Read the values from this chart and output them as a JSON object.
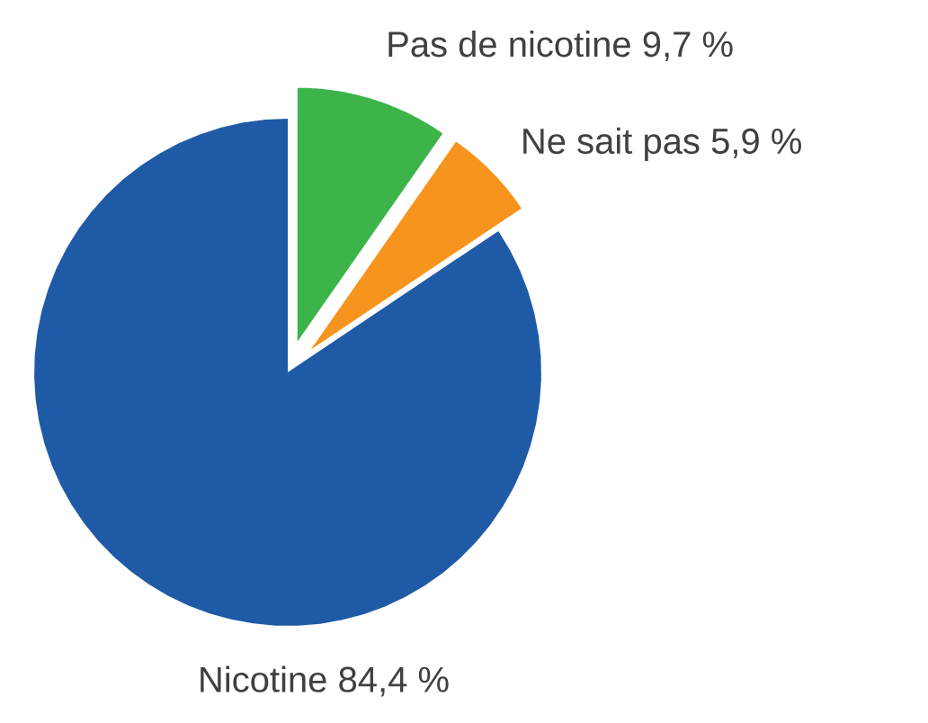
{
  "chart_data": {
    "type": "pie",
    "categories": [
      "Pas de nicotine",
      "Ne sait pas",
      "Nicotine"
    ],
    "values": [
      9.7,
      5.9,
      84.4
    ],
    "value_labels": [
      "9,7 %",
      "5,9 %",
      "84,4 %"
    ],
    "colors": [
      "#3cb44a",
      "#f7941d",
      "#1f5aa6"
    ]
  }
}
